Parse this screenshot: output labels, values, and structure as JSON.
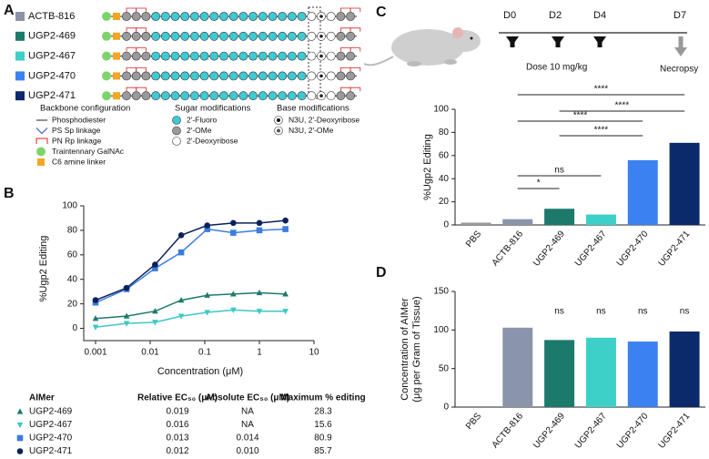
{
  "panel_labels": [
    "A",
    "B",
    "C",
    "D"
  ],
  "panel_a": {
    "oligos": [
      {
        "name": "ACTB-816",
        "color": "#8a93a6"
      },
      {
        "name": "UGP2-469",
        "color": "#1b7a6b"
      },
      {
        "name": "UGP2-467",
        "color": "#3cd0c8"
      },
      {
        "name": "UGP2-470",
        "color": "#3b82f0"
      },
      {
        "name": "UGP2-471",
        "color": "#0b2a6b"
      }
    ],
    "legend": {
      "backbone": {
        "title": "Backbone configuration",
        "items": [
          "Phosphodiester",
          "PS Sp linkage",
          "PN Rp linkage",
          "Traintennary GalNAc",
          "C6 amine linker"
        ]
      },
      "sugar": {
        "title": "Sugar modifications",
        "items": [
          "2'-Fluoro",
          "2'-OMe",
          "2'-Deoxyribose"
        ]
      },
      "base": {
        "title": "Base modifications",
        "items": [
          "N3U, 2'-Deoxyribose",
          "N3U, 2'-OMe"
        ]
      }
    }
  },
  "timeline": {
    "days": [
      "D0",
      "D2",
      "D4",
      "D7"
    ],
    "dose": "Dose 10 mg/kg",
    "endpoint": "Necropsy"
  },
  "table": {
    "header": [
      "AIMer",
      "Relative EC₅₀ (μM)",
      "Absolute EC₅₀ (μM)",
      "Maximum % editing"
    ],
    "rows": [
      [
        "UGP2-469",
        "0.019",
        "NA",
        "28.3"
      ],
      [
        "UGP2-467",
        "0.016",
        "NA",
        "15.6"
      ],
      [
        "UGP2-470",
        "0.013",
        "0.014",
        "80.9"
      ],
      [
        "UGP2-471",
        "0.012",
        "0.010",
        "85.7"
      ]
    ]
  },
  "chart_data": [
    {
      "type": "line",
      "x_label": "Concentration (μM)",
      "y_label": "%Ugp2 Editing",
      "xscale": "log",
      "x": [
        0.001,
        0.0037,
        0.0123,
        0.037,
        0.111,
        0.333,
        1,
        3
      ],
      "series": [
        {
          "color": "#1b7a6b",
          "marker": "triangle-up",
          "values": [
            8,
            10,
            14,
            23,
            27,
            28,
            29,
            28
          ]
        },
        {
          "color": "#3cc8c8",
          "marker": "triangle-down",
          "values": [
            1,
            4,
            5,
            10,
            13,
            15,
            14,
            14
          ]
        },
        {
          "color": "#3b7ddd",
          "marker": "square",
          "values": [
            21,
            32,
            49,
            62,
            81,
            78,
            80,
            81
          ]
        },
        {
          "color": "#0d1f5c",
          "marker": "circle",
          "values": [
            23,
            33,
            52,
            76,
            84,
            86,
            86,
            88
          ]
        }
      ],
      "xlim": [
        0.001,
        10
      ],
      "xticks": [
        0.001,
        0.01,
        0.1,
        1,
        10
      ],
      "ylim": [
        -10,
        100
      ],
      "yticks": [
        0,
        20,
        40,
        60,
        80,
        100
      ]
    },
    {
      "type": "bar",
      "y_label": "%Ugp2 Editing",
      "categories": [
        "PBS",
        "ACTB-816",
        "UGP2-469",
        "UGP2-467",
        "UGP2-470",
        "UGP2-471"
      ],
      "values": [
        2,
        5,
        14,
        9,
        56,
        71
      ],
      "colors": [
        "#9a9a9a",
        "#8a95ab",
        "#1b7a6b",
        "#3cd0c8",
        "#3b82f0",
        "#0b2a6b"
      ],
      "ylim": [
        0,
        100
      ],
      "yticks": [
        0,
        20,
        40,
        60,
        80,
        100
      ],
      "annotations": [
        "****",
        "****",
        "****",
        "****",
        "ns",
        "*"
      ]
    },
    {
      "type": "bar",
      "y_label": [
        "Concentration of AIMer",
        "(μg per Gram of Tissue)"
      ],
      "categories": [
        "PBS",
        "ACTB-816",
        "UGP2-469",
        "UGP2-467",
        "UGP2-470",
        "UGP2-471"
      ],
      "values": [
        0,
        103,
        87,
        90,
        85,
        98
      ],
      "colors": [
        "#9a9a9a",
        "#8a95ab",
        "#1b7a6b",
        "#3cd0c8",
        "#3b82f0",
        "#0b2a6b"
      ],
      "ylim": [
        0,
        150
      ],
      "yticks": [
        0,
        50,
        100,
        150
      ],
      "annotations": [
        "ns",
        "ns",
        "ns",
        "ns"
      ]
    }
  ]
}
